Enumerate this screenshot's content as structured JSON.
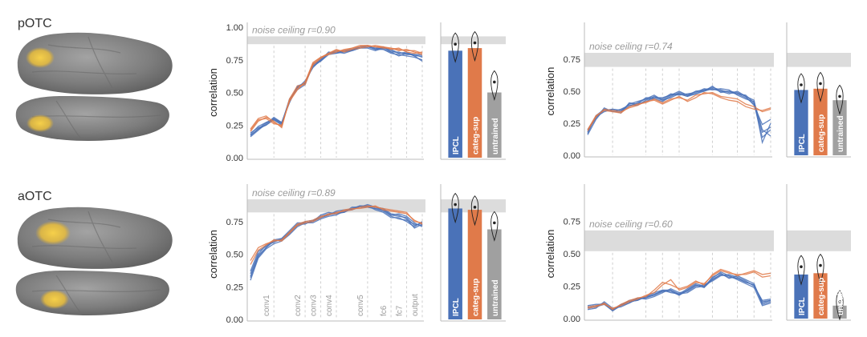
{
  "colors": {
    "ipcl": "#4a72b8",
    "categ_sup": "#e07a4a",
    "untrained": "#a0a0a0",
    "noise_band": "#dcdcdc",
    "brain": "#8a8a8a",
    "roi_highlight": "#f0c040"
  },
  "icons": {
    "brain_lateral": "brain-lateral-view-icon",
    "brain_ventral": "brain-ventral-view-icon"
  },
  "chart_data": [
    {
      "id": "potc-left",
      "roi": "pOTC",
      "type": "line",
      "ylabel": "correlation",
      "ylim": [
        0,
        1.0
      ],
      "yticks": [
        "1.00",
        "0.75",
        "0.50",
        "0.25",
        "0.00"
      ],
      "yticks_values": [
        1.0,
        0.75,
        0.5,
        0.25,
        0.0
      ],
      "noise_ceiling_label": "noise ceiling r=0.90",
      "noise_ceiling": [
        0.87,
        0.93
      ],
      "xticks": [],
      "layer_positions": [
        3,
        7,
        9,
        11,
        15,
        18,
        20,
        22
      ],
      "n_points": 23,
      "series": [
        {
          "name": "ipcl",
          "values": [
            0.17,
            0.22,
            0.27,
            0.3,
            0.27,
            0.43,
            0.54,
            0.58,
            0.7,
            0.75,
            0.8,
            0.81,
            0.82,
            0.82,
            0.84,
            0.85,
            0.84,
            0.84,
            0.82,
            0.8,
            0.8,
            0.78,
            0.78
          ]
        },
        {
          "name": "ipcl",
          "values": [
            0.19,
            0.23,
            0.25,
            0.29,
            0.25,
            0.44,
            0.52,
            0.56,
            0.72,
            0.74,
            0.79,
            0.8,
            0.81,
            0.83,
            0.85,
            0.86,
            0.83,
            0.85,
            0.81,
            0.81,
            0.79,
            0.79,
            0.77
          ]
        },
        {
          "name": "ipcl",
          "values": [
            0.16,
            0.21,
            0.26,
            0.31,
            0.27,
            0.42,
            0.55,
            0.57,
            0.71,
            0.76,
            0.8,
            0.82,
            0.81,
            0.82,
            0.84,
            0.85,
            0.84,
            0.83,
            0.8,
            0.79,
            0.78,
            0.77,
            0.75
          ]
        },
        {
          "name": "ipcl",
          "values": [
            0.18,
            0.24,
            0.27,
            0.29,
            0.26,
            0.45,
            0.53,
            0.59,
            0.69,
            0.75,
            0.81,
            0.8,
            0.82,
            0.83,
            0.84,
            0.84,
            0.82,
            0.84,
            0.83,
            0.8,
            0.81,
            0.78,
            0.74
          ]
        },
        {
          "name": "ipcl",
          "values": [
            0.17,
            0.22,
            0.25,
            0.3,
            0.26,
            0.44,
            0.54,
            0.57,
            0.7,
            0.74,
            0.8,
            0.81,
            0.8,
            0.82,
            0.85,
            0.85,
            0.83,
            0.83,
            0.81,
            0.78,
            0.8,
            0.79,
            0.79
          ]
        },
        {
          "name": "categ_sup",
          "values": [
            0.22,
            0.3,
            0.32,
            0.27,
            0.24,
            0.44,
            0.53,
            0.58,
            0.72,
            0.77,
            0.8,
            0.82,
            0.82,
            0.84,
            0.85,
            0.86,
            0.85,
            0.84,
            0.84,
            0.83,
            0.82,
            0.82,
            0.8
          ]
        },
        {
          "name": "categ_sup",
          "values": [
            0.2,
            0.28,
            0.31,
            0.28,
            0.23,
            0.45,
            0.55,
            0.56,
            0.71,
            0.76,
            0.8,
            0.83,
            0.81,
            0.83,
            0.84,
            0.85,
            0.86,
            0.85,
            0.83,
            0.84,
            0.81,
            0.8,
            0.81
          ]
        },
        {
          "name": "categ_sup",
          "values": [
            0.21,
            0.29,
            0.3,
            0.26,
            0.25,
            0.43,
            0.52,
            0.58,
            0.73,
            0.77,
            0.79,
            0.81,
            0.83,
            0.84,
            0.86,
            0.86,
            0.85,
            0.85,
            0.84,
            0.82,
            0.83,
            0.81,
            0.79
          ]
        }
      ],
      "bars": {
        "categories": [
          "IPCL",
          "categ-sup",
          "untrained"
        ],
        "values": [
          0.82,
          0.84,
          0.5
        ],
        "violin_center": [
          0.87,
          0.88,
          0.58
        ]
      }
    },
    {
      "id": "potc-right",
      "roi": "pOTC",
      "type": "line",
      "ylabel": "correlation",
      "ylim": [
        0,
        1.0
      ],
      "yticks": [
        "0.75",
        "0.50",
        "0.25",
        "0.00"
      ],
      "yticks_values": [
        0.75,
        0.5,
        0.25,
        0.0
      ],
      "noise_ceiling_label": "noise ceiling r=0.74",
      "noise_ceiling": [
        0.69,
        0.8
      ],
      "xticks": [],
      "layer_positions": [
        3,
        7,
        9,
        11,
        15,
        18,
        20,
        22
      ],
      "n_points": 23,
      "series": [
        {
          "name": "ipcl",
          "values": [
            0.16,
            0.28,
            0.36,
            0.35,
            0.34,
            0.4,
            0.4,
            0.42,
            0.45,
            0.43,
            0.47,
            0.48,
            0.46,
            0.48,
            0.5,
            0.52,
            0.5,
            0.5,
            0.49,
            0.46,
            0.43,
            0.1,
            0.25
          ]
        },
        {
          "name": "ipcl",
          "values": [
            0.18,
            0.3,
            0.35,
            0.36,
            0.35,
            0.38,
            0.41,
            0.44,
            0.44,
            0.42,
            0.46,
            0.49,
            0.47,
            0.5,
            0.51,
            0.53,
            0.51,
            0.49,
            0.48,
            0.45,
            0.4,
            0.14,
            0.2
          ]
        },
        {
          "name": "ipcl",
          "values": [
            0.19,
            0.29,
            0.37,
            0.34,
            0.36,
            0.39,
            0.39,
            0.43,
            0.46,
            0.44,
            0.48,
            0.47,
            0.48,
            0.49,
            0.52,
            0.51,
            0.52,
            0.51,
            0.47,
            0.44,
            0.42,
            0.2,
            0.15
          ]
        },
        {
          "name": "ipcl",
          "values": [
            0.17,
            0.31,
            0.36,
            0.35,
            0.33,
            0.41,
            0.4,
            0.45,
            0.45,
            0.45,
            0.47,
            0.5,
            0.47,
            0.48,
            0.51,
            0.52,
            0.5,
            0.48,
            0.5,
            0.46,
            0.39,
            0.24,
            0.28
          ]
        },
        {
          "name": "ipcl",
          "values": [
            0.2,
            0.3,
            0.34,
            0.36,
            0.35,
            0.4,
            0.42,
            0.44,
            0.47,
            0.43,
            0.45,
            0.48,
            0.46,
            0.5,
            0.5,
            0.54,
            0.49,
            0.5,
            0.48,
            0.47,
            0.41,
            0.18,
            0.22
          ]
        },
        {
          "name": "categ_sup",
          "values": [
            0.2,
            0.31,
            0.35,
            0.34,
            0.33,
            0.38,
            0.4,
            0.41,
            0.44,
            0.41,
            0.44,
            0.45,
            0.43,
            0.47,
            0.48,
            0.49,
            0.46,
            0.45,
            0.44,
            0.4,
            0.38,
            0.34,
            0.36
          ]
        },
        {
          "name": "categ_sup",
          "values": [
            0.19,
            0.3,
            0.36,
            0.35,
            0.34,
            0.37,
            0.39,
            0.42,
            0.43,
            0.4,
            0.43,
            0.46,
            0.42,
            0.45,
            0.49,
            0.48,
            0.45,
            0.43,
            0.42,
            0.38,
            0.36,
            0.35,
            0.37
          ]
        }
      ],
      "bars": {
        "categories": [
          "IPCL",
          "categ-sup",
          "untrained"
        ],
        "values": [
          0.51,
          0.52,
          0.43
        ],
        "violin_center": [
          0.55,
          0.56,
          0.46
        ]
      }
    },
    {
      "id": "aotc-left",
      "roi": "aOTC",
      "type": "line",
      "ylabel": "correlation",
      "ylim": [
        0,
        1.0
      ],
      "yticks": [
        "0.75",
        "0.50",
        "0.25",
        "0.00"
      ],
      "yticks_values": [
        0.75,
        0.5,
        0.25,
        0.0
      ],
      "noise_ceiling_label": "noise ceiling r=0.89",
      "noise_ceiling": [
        0.82,
        0.92
      ],
      "xticks": [
        "conv1",
        "conv2",
        "conv3",
        "conv4",
        "conv5",
        "fc6",
        "fc7",
        "output"
      ],
      "layer_positions": [
        3,
        7,
        9,
        11,
        15,
        18,
        20,
        22
      ],
      "n_points": 23,
      "series": [
        {
          "name": "ipcl",
          "values": [
            0.32,
            0.48,
            0.55,
            0.6,
            0.61,
            0.66,
            0.72,
            0.74,
            0.75,
            0.78,
            0.8,
            0.81,
            0.83,
            0.84,
            0.86,
            0.87,
            0.86,
            0.84,
            0.8,
            0.79,
            0.78,
            0.72,
            0.74
          ]
        },
        {
          "name": "ipcl",
          "values": [
            0.35,
            0.5,
            0.57,
            0.59,
            0.62,
            0.67,
            0.73,
            0.73,
            0.76,
            0.79,
            0.81,
            0.82,
            0.82,
            0.85,
            0.87,
            0.86,
            0.85,
            0.83,
            0.79,
            0.77,
            0.76,
            0.73,
            0.72
          ]
        },
        {
          "name": "ipcl",
          "values": [
            0.3,
            0.47,
            0.54,
            0.58,
            0.6,
            0.65,
            0.71,
            0.74,
            0.74,
            0.77,
            0.79,
            0.8,
            0.83,
            0.85,
            0.86,
            0.88,
            0.86,
            0.85,
            0.81,
            0.8,
            0.77,
            0.7,
            0.73
          ]
        },
        {
          "name": "ipcl",
          "values": [
            0.37,
            0.52,
            0.56,
            0.6,
            0.61,
            0.66,
            0.72,
            0.75,
            0.76,
            0.78,
            0.8,
            0.83,
            0.84,
            0.84,
            0.87,
            0.87,
            0.84,
            0.82,
            0.78,
            0.78,
            0.75,
            0.71,
            0.75
          ]
        },
        {
          "name": "ipcl",
          "values": [
            0.33,
            0.49,
            0.55,
            0.61,
            0.62,
            0.68,
            0.74,
            0.74,
            0.75,
            0.8,
            0.82,
            0.81,
            0.82,
            0.86,
            0.86,
            0.86,
            0.85,
            0.84,
            0.8,
            0.81,
            0.79,
            0.74,
            0.71
          ]
        },
        {
          "name": "categ_sup",
          "values": [
            0.45,
            0.55,
            0.58,
            0.6,
            0.61,
            0.67,
            0.73,
            0.75,
            0.76,
            0.79,
            0.8,
            0.82,
            0.83,
            0.84,
            0.86,
            0.87,
            0.86,
            0.85,
            0.84,
            0.83,
            0.82,
            0.75,
            0.74
          ]
        },
        {
          "name": "categ_sup",
          "values": [
            0.42,
            0.53,
            0.57,
            0.61,
            0.6,
            0.66,
            0.72,
            0.74,
            0.75,
            0.78,
            0.81,
            0.81,
            0.84,
            0.85,
            0.85,
            0.86,
            0.87,
            0.84,
            0.83,
            0.82,
            0.81,
            0.76,
            0.73
          ]
        }
      ],
      "bars": {
        "categories": [
          "IPCL",
          "categ-sup",
          "untrained"
        ],
        "values": [
          0.85,
          0.84,
          0.69
        ],
        "violin_center": [
          0.88,
          0.86,
          0.74
        ]
      }
    },
    {
      "id": "aotc-right",
      "roi": "aOTC",
      "type": "line",
      "ylabel": "correlation",
      "ylim": [
        0,
        1.0
      ],
      "yticks": [
        "0.75",
        "0.50",
        "0.25",
        "0.00"
      ],
      "yticks_values": [
        0.75,
        0.5,
        0.25,
        0.0
      ],
      "noise_ceiling_label": "noise ceiling r=0.60",
      "noise_ceiling": [
        0.52,
        0.68
      ],
      "xticks": [],
      "layer_positions": [
        3,
        7,
        9,
        11,
        15,
        18,
        20,
        22
      ],
      "n_points": 23,
      "series": [
        {
          "name": "ipcl",
          "values": [
            0.08,
            0.09,
            0.11,
            0.06,
            0.1,
            0.12,
            0.15,
            0.16,
            0.18,
            0.21,
            0.22,
            0.18,
            0.22,
            0.26,
            0.24,
            0.3,
            0.34,
            0.32,
            0.31,
            0.28,
            0.26,
            0.12,
            0.14
          ]
        },
        {
          "name": "ipcl",
          "values": [
            0.09,
            0.1,
            0.12,
            0.07,
            0.11,
            0.13,
            0.14,
            0.17,
            0.2,
            0.22,
            0.2,
            0.19,
            0.23,
            0.27,
            0.25,
            0.31,
            0.36,
            0.33,
            0.3,
            0.27,
            0.24,
            0.1,
            0.12
          ]
        },
        {
          "name": "ipcl",
          "values": [
            0.07,
            0.08,
            0.13,
            0.08,
            0.09,
            0.12,
            0.16,
            0.15,
            0.17,
            0.2,
            0.23,
            0.2,
            0.21,
            0.25,
            0.26,
            0.29,
            0.33,
            0.34,
            0.32,
            0.29,
            0.25,
            0.14,
            0.15
          ]
        },
        {
          "name": "ipcl",
          "values": [
            0.1,
            0.11,
            0.11,
            0.07,
            0.1,
            0.14,
            0.15,
            0.16,
            0.19,
            0.21,
            0.21,
            0.18,
            0.22,
            0.26,
            0.24,
            0.32,
            0.35,
            0.31,
            0.33,
            0.3,
            0.27,
            0.11,
            0.13
          ]
        },
        {
          "name": "ipcl",
          "values": [
            0.08,
            0.09,
            0.12,
            0.06,
            0.11,
            0.13,
            0.14,
            0.17,
            0.18,
            0.22,
            0.22,
            0.19,
            0.2,
            0.24,
            0.25,
            0.3,
            0.34,
            0.33,
            0.31,
            0.28,
            0.26,
            0.13,
            0.14
          ]
        },
        {
          "name": "categ_sup",
          "values": [
            0.09,
            0.1,
            0.11,
            0.08,
            0.1,
            0.13,
            0.15,
            0.18,
            0.2,
            0.26,
            0.3,
            0.22,
            0.24,
            0.28,
            0.27,
            0.33,
            0.37,
            0.35,
            0.34,
            0.34,
            0.36,
            0.32,
            0.33
          ]
        },
        {
          "name": "categ_sup",
          "values": [
            0.08,
            0.09,
            0.12,
            0.07,
            0.11,
            0.14,
            0.16,
            0.17,
            0.22,
            0.28,
            0.26,
            0.23,
            0.25,
            0.29,
            0.26,
            0.34,
            0.38,
            0.36,
            0.33,
            0.35,
            0.37,
            0.34,
            0.35
          ]
        }
      ],
      "bars": {
        "categories": [
          "IPCL",
          "categ-sup",
          "untrained"
        ],
        "values": [
          0.34,
          0.35,
          0.1
        ],
        "violin_center": [
          0.4,
          0.41,
          0.13
        ]
      }
    }
  ]
}
